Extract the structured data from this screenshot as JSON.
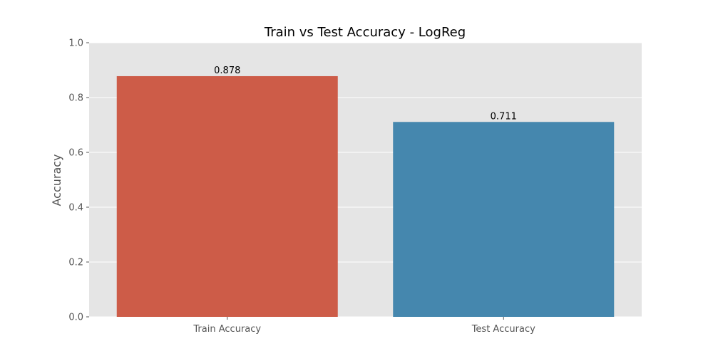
{
  "chart_data": {
    "type": "bar",
    "title": "Train vs Test Accuracy - LogReg",
    "xlabel": "",
    "ylabel": "Accuracy",
    "categories": [
      "Train Accuracy",
      "Test Accuracy"
    ],
    "values": [
      0.878,
      0.711
    ],
    "data_labels": [
      "0.878",
      "0.711"
    ],
    "ylim": [
      0,
      1.0
    ],
    "yticks": [
      0.0,
      0.2,
      0.4,
      0.6,
      0.8,
      1.0
    ],
    "ytick_labels": [
      "0.0",
      "0.2",
      "0.4",
      "0.6",
      "0.8",
      "1.0"
    ],
    "colors": [
      "#cd5c48",
      "#4587ae"
    ],
    "plot_background": "#e5e5e5",
    "grid": true,
    "grid_axis": "y",
    "legend": false
  }
}
